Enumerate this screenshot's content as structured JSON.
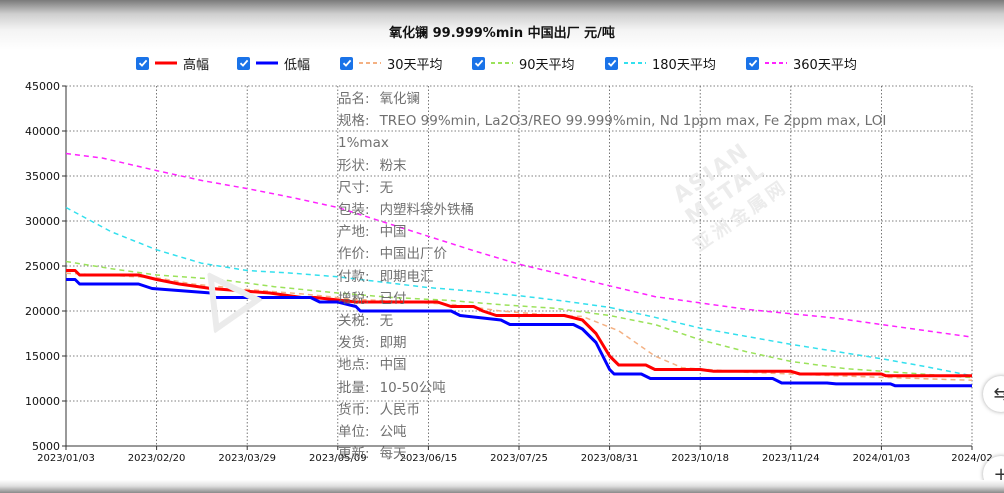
{
  "title": "氧化镧 99.999%min 中国出厂 元/吨",
  "legend": [
    {
      "label": "高幅",
      "color": "#ff0000",
      "style": "solid"
    },
    {
      "label": "低幅",
      "color": "#0000ff",
      "style": "solid"
    },
    {
      "label": "30天平均",
      "color": "#f4b183",
      "style": "dashed"
    },
    {
      "label": "90天平均",
      "color": "#9be25a",
      "style": "dashed"
    },
    {
      "label": "180天平均",
      "color": "#33e0ee",
      "style": "dashed"
    },
    {
      "label": "360天平均",
      "color": "#ff22ff",
      "style": "dashed"
    }
  ],
  "info": [
    {
      "label": "品名:",
      "value": "氧化镧"
    },
    {
      "label": "规格:",
      "value": "TREO 99%min, La2O3/REO 99.999%min, Nd 1ppm max, Fe 2ppm max, LOI 1%max"
    },
    {
      "label": "形状:",
      "value": "粉末"
    },
    {
      "label": "尺寸:",
      "value": "无"
    },
    {
      "label": "包装:",
      "value": "内塑料袋外铁桶"
    },
    {
      "label": "产地:",
      "value": "中国"
    },
    {
      "label": "作价:",
      "value": "中国出厂价"
    },
    {
      "label": "付款:",
      "value": "即期电汇"
    },
    {
      "label": "增税:",
      "value": "已付"
    },
    {
      "label": "关税:",
      "value": "无"
    },
    {
      "label": "发货:",
      "value": "即期"
    },
    {
      "label": "地点:",
      "value": "中国"
    },
    {
      "label": "批量:",
      "value": "10-50公吨"
    },
    {
      "label": "货币:",
      "value": "人民币"
    },
    {
      "label": "单位:",
      "value": "公吨"
    },
    {
      "label": "更新:",
      "value": "每天"
    }
  ],
  "watermark": {
    "line1": "ASIAN METAL",
    "line2": "亚洲金属网"
  },
  "side_buttons": {
    "top": "⇆",
    "bottom": "+"
  },
  "chart_data": {
    "type": "line",
    "ylim": [
      5000,
      45000
    ],
    "yticks": [
      5000,
      10000,
      15000,
      20000,
      25000,
      30000,
      35000,
      40000,
      45000
    ],
    "xticks": [
      "2023/01/03",
      "2023/02/20",
      "2023/03/29",
      "2023/05/09",
      "2023/06/15",
      "2023/07/25",
      "2023/08/31",
      "2023/10/18",
      "2023/11/24",
      "2024/01/03",
      "2024/02"
    ],
    "grid": true,
    "legend_position": "top",
    "series": [
      {
        "name": "高幅",
        "color": "#ff0000",
        "dash": "",
        "width": 3,
        "points": [
          [
            0,
            24500
          ],
          [
            0.1,
            24500
          ],
          [
            0.15,
            24000
          ],
          [
            0.8,
            24000
          ],
          [
            1,
            23500
          ],
          [
            1.25,
            23000
          ],
          [
            1.6,
            22500
          ],
          [
            2.25,
            22000
          ],
          [
            2.6,
            21500
          ],
          [
            2.75,
            21500
          ],
          [
            3.2,
            21000
          ],
          [
            4.1,
            21000
          ],
          [
            4.25,
            20500
          ],
          [
            4.5,
            20500
          ],
          [
            4.6,
            20000
          ],
          [
            4.75,
            19500
          ],
          [
            5.5,
            19500
          ],
          [
            5.7,
            19000
          ],
          [
            5.85,
            17500
          ],
          [
            6.0,
            15000
          ],
          [
            6.1,
            14000
          ],
          [
            6.4,
            14000
          ],
          [
            6.5,
            13500
          ],
          [
            7.0,
            13500
          ],
          [
            7.15,
            13300
          ],
          [
            8.0,
            13300
          ],
          [
            8.1,
            13000
          ],
          [
            9.0,
            13000
          ],
          [
            9.05,
            12800
          ],
          [
            10.0,
            12800
          ]
        ]
      },
      {
        "name": "低幅",
        "color": "#0000ff",
        "dash": "",
        "width": 3,
        "points": [
          [
            0,
            23500
          ],
          [
            0.1,
            23500
          ],
          [
            0.15,
            23000
          ],
          [
            0.8,
            23000
          ],
          [
            0.95,
            22500
          ],
          [
            1.6,
            22000
          ],
          [
            1.65,
            21500
          ],
          [
            2.7,
            21500
          ],
          [
            2.8,
            21000
          ],
          [
            3.0,
            21000
          ],
          [
            3.2,
            20500
          ],
          [
            3.25,
            20000
          ],
          [
            4.25,
            20000
          ],
          [
            4.35,
            19500
          ],
          [
            4.8,
            19000
          ],
          [
            4.9,
            18500
          ],
          [
            5.6,
            18500
          ],
          [
            5.7,
            18000
          ],
          [
            5.85,
            16500
          ],
          [
            6.0,
            13500
          ],
          [
            6.05,
            13000
          ],
          [
            6.35,
            13000
          ],
          [
            6.45,
            12500
          ],
          [
            7.8,
            12500
          ],
          [
            7.9,
            12000
          ],
          [
            8.4,
            12000
          ],
          [
            8.5,
            11900
          ],
          [
            9.1,
            11900
          ],
          [
            9.15,
            11700
          ],
          [
            10.0,
            11700
          ]
        ]
      },
      {
        "name": "30天平均",
        "color": "#f4b183",
        "dash": "5,4",
        "width": 1.5,
        "points": [
          [
            0,
            24200
          ],
          [
            0.6,
            23900
          ],
          [
            1.0,
            23700
          ],
          [
            1.4,
            23000
          ],
          [
            2.0,
            22400
          ],
          [
            2.6,
            21900
          ],
          [
            3.2,
            21300
          ],
          [
            3.8,
            21000
          ],
          [
            4.3,
            20700
          ],
          [
            4.8,
            20000
          ],
          [
            5.4,
            19500
          ],
          [
            5.7,
            19400
          ],
          [
            6.1,
            17800
          ],
          [
            6.5,
            15000
          ],
          [
            6.8,
            13700
          ],
          [
            7.5,
            13200
          ],
          [
            8.5,
            12800
          ],
          [
            10.0,
            12300
          ]
        ]
      },
      {
        "name": "90天平均",
        "color": "#9be25a",
        "dash": "5,4",
        "width": 1.5,
        "points": [
          [
            0,
            25500
          ],
          [
            0.5,
            24700
          ],
          [
            1.0,
            24000
          ],
          [
            1.7,
            23500
          ],
          [
            2.3,
            22700
          ],
          [
            3.0,
            22000
          ],
          [
            3.6,
            21500
          ],
          [
            4.2,
            21200
          ],
          [
            4.8,
            20700
          ],
          [
            5.4,
            20300
          ],
          [
            6.0,
            19500
          ],
          [
            6.5,
            18500
          ],
          [
            7.0,
            16800
          ],
          [
            7.5,
            15500
          ],
          [
            8.0,
            14400
          ],
          [
            8.6,
            13600
          ],
          [
            9.3,
            13100
          ],
          [
            10.0,
            12600
          ]
        ]
      },
      {
        "name": "180天平均",
        "color": "#33e0ee",
        "dash": "5,4",
        "width": 1.5,
        "points": [
          [
            0,
            31500
          ],
          [
            0.5,
            28800
          ],
          [
            1.0,
            26800
          ],
          [
            1.5,
            25300
          ],
          [
            2.0,
            24500
          ],
          [
            2.5,
            24200
          ],
          [
            3.0,
            23800
          ],
          [
            3.5,
            23200
          ],
          [
            4.0,
            22600
          ],
          [
            4.5,
            22200
          ],
          [
            5.0,
            21700
          ],
          [
            5.5,
            21100
          ],
          [
            6.0,
            20400
          ],
          [
            6.5,
            19300
          ],
          [
            7.0,
            18100
          ],
          [
            7.5,
            17200
          ],
          [
            8.0,
            16300
          ],
          [
            8.5,
            15500
          ],
          [
            9.0,
            14700
          ],
          [
            9.5,
            13800
          ],
          [
            10.0,
            12800
          ]
        ]
      },
      {
        "name": "360天平均",
        "color": "#ff22ff",
        "dash": "5,4",
        "width": 1.5,
        "points": [
          [
            0,
            37500
          ],
          [
            0.4,
            37000
          ],
          [
            0.7,
            36300
          ],
          [
            1.0,
            35600
          ],
          [
            1.5,
            34500
          ],
          [
            2.0,
            33600
          ],
          [
            2.5,
            32600
          ],
          [
            3.0,
            31500
          ],
          [
            3.5,
            29900
          ],
          [
            4.0,
            28300
          ],
          [
            4.5,
            26700
          ],
          [
            5.0,
            25200
          ],
          [
            5.5,
            24000
          ],
          [
            6.0,
            22800
          ],
          [
            6.5,
            21600
          ],
          [
            7.0,
            20900
          ],
          [
            7.5,
            20200
          ],
          [
            8.0,
            19700
          ],
          [
            8.5,
            19200
          ],
          [
            9.0,
            18500
          ],
          [
            9.5,
            17800
          ],
          [
            10.0,
            17100
          ]
        ]
      }
    ]
  }
}
